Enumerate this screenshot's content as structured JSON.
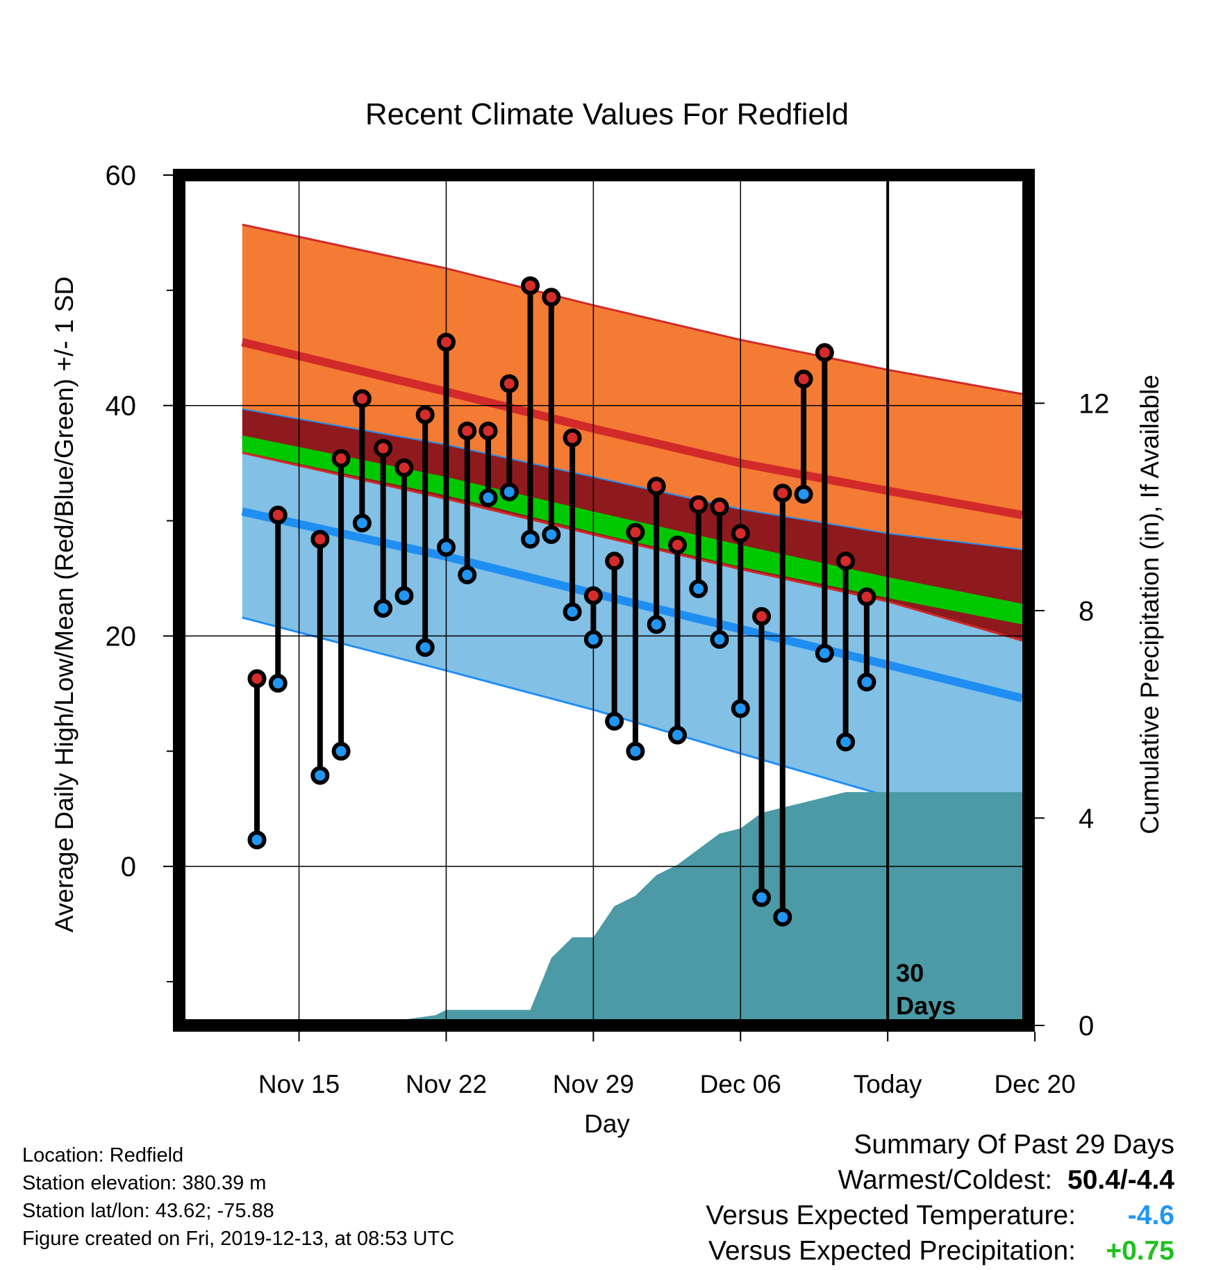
{
  "chart_data": {
    "type": "line",
    "title": "Recent Climate Values For Redfield",
    "xlabel": "Day",
    "ylabel": "Average Daily High/Low/Mean (Red/Blue/Green) +/- 1 SD",
    "y2label": "Cumulative Precipitation (in), If Available",
    "ylim": [
      -13.8,
      60
    ],
    "y2lim": [
      0,
      16.4
    ],
    "xlim": [
      -5.7,
      34.7
    ],
    "x_units": "days from Nov 15",
    "xticks": [
      {
        "x": 0,
        "label": "Nov 15"
      },
      {
        "x": 7,
        "label": "Nov 22"
      },
      {
        "x": 14,
        "label": "Nov 29"
      },
      {
        "x": 21,
        "label": "Dec 06"
      },
      {
        "x": 28,
        "label": "Today"
      },
      {
        "x": 35,
        "label": "Dec 20"
      }
    ],
    "yticks": [
      0,
      20,
      40,
      60
    ],
    "y2ticks": [
      0,
      4,
      8,
      12
    ],
    "today_x": 28,
    "today_label_line1": "30",
    "today_label_line2": "Days",
    "colors": {
      "high_band": "#f47b33",
      "high_line": "#d22a2a",
      "overlap_band": "#8f1a1d",
      "low_band": "#82c0e6",
      "low_line": "#1f8ef3",
      "mean_band": "#00c800",
      "precip": "#4b9aa5",
      "high_marker": "#d62b2b",
      "low_marker": "#2196f3"
    },
    "normals_x": [
      -2.7,
      7,
      14,
      21,
      28,
      34.4
    ],
    "normal_high": [
      45.5,
      41.2,
      38.0,
      35.0,
      32.6,
      30.5
    ],
    "normal_high_upper": [
      55.7,
      51.9,
      48.7,
      45.7,
      43.1,
      41.0
    ],
    "normal_high_lower": [
      39.7,
      36.6,
      33.8,
      31.0,
      28.9,
      27.5
    ],
    "normal_mean_upper": [
      37.4,
      33.8,
      30.8,
      27.9,
      25.1,
      22.8
    ],
    "normal_mean_lower": [
      36.0,
      32.2,
      29.0,
      26.0,
      23.3,
      21.0
    ],
    "normal_low_upper": [
      35.9,
      31.9,
      28.8,
      25.8,
      23.0,
      19.6
    ],
    "normal_low": [
      30.8,
      26.9,
      23.7,
      20.6,
      17.5,
      14.6
    ],
    "normal_low_lower": [
      21.6,
      17.0,
      13.6,
      9.8,
      6.1,
      1.8
    ],
    "daily_x": [
      -2,
      -1,
      1,
      2,
      3,
      4,
      5,
      6,
      7,
      8,
      9,
      10,
      11,
      12,
      13,
      14,
      15,
      16,
      17,
      18,
      19,
      20,
      21,
      22,
      23,
      24,
      25,
      26,
      27
    ],
    "daily_high": [
      16.3,
      30.5,
      28.4,
      35.4,
      40.6,
      36.3,
      34.6,
      39.2,
      45.5,
      37.8,
      37.8,
      41.9,
      50.4,
      49.4,
      37.2,
      23.5,
      26.5,
      29.0,
      33.0,
      27.9,
      31.4,
      31.2,
      28.9,
      21.7,
      32.4,
      42.3,
      44.6,
      26.5,
      23.4
    ],
    "daily_low": [
      2.3,
      15.9,
      7.9,
      10.0,
      29.8,
      22.4,
      23.5,
      19.0,
      27.7,
      25.3,
      32.0,
      32.5,
      28.4,
      28.8,
      22.1,
      19.7,
      12.6,
      10.0,
      21.0,
      11.4,
      24.1,
      19.7,
      13.7,
      -2.7,
      -4.4,
      32.3,
      18.5,
      10.8,
      16.0
    ],
    "precip_x": [
      -2.7,
      3,
      6.5,
      7,
      7.5,
      8,
      8.5,
      9,
      9.5,
      10,
      11,
      12,
      13,
      13.5,
      14,
      15,
      16,
      17,
      18,
      19,
      20,
      21,
      22,
      23,
      24,
      25,
      26,
      27,
      27.5,
      28,
      30,
      32,
      34.4
    ],
    "precip": [
      0,
      0,
      0.2,
      0.3,
      0.3,
      0.3,
      0.3,
      0.3,
      0.3,
      0.3,
      0.3,
      1.3,
      1.7,
      1.7,
      1.7,
      2.3,
      2.5,
      2.9,
      3.1,
      3.4,
      3.7,
      3.8,
      4.1,
      4.2,
      4.3,
      4.4,
      4.5,
      4.5,
      4.5,
      4.5,
      4.5,
      4.5,
      4.5
    ]
  },
  "footer": {
    "location": "Location: Redfield",
    "elevation": "Station elevation: 380.39 m",
    "latlon": "Station lat/lon: 43.62; -75.88",
    "created": "Figure created on Fri, 2019-12-13, at 08:53 UTC"
  },
  "summary": {
    "heading": "Summary Of Past 29 Days",
    "warmest_coldest_label": "Warmest/Coldest:",
    "warmest_coldest_value": "50.4/-4.4",
    "temp_label": "Versus Expected Temperature:",
    "temp_value": "-4.6",
    "temp_color": "#2196f3",
    "precip_label": "Versus Expected Precipitation:",
    "precip_value": "+0.75",
    "precip_color": "#1fc11f"
  }
}
